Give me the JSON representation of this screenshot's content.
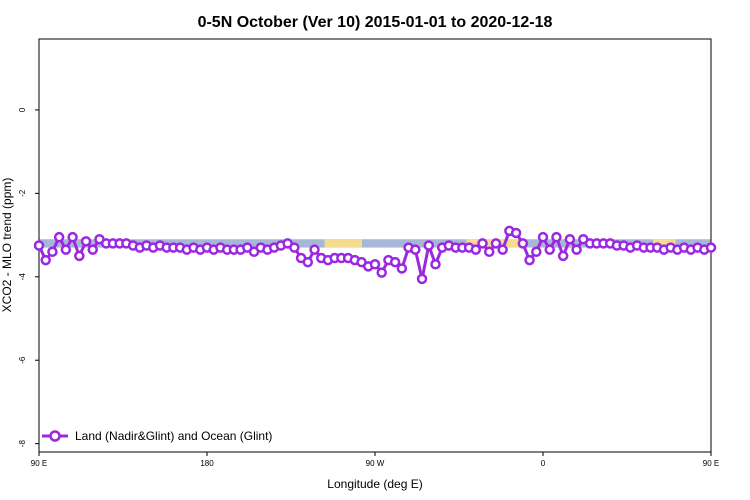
{
  "chart_data": {
    "type": "line",
    "title": "0-5N October (Ver 10)   2015-01-01 to 2020-12-18",
    "xlabel": "Longitude (deg E)",
    "ylabel": "XCO2 - MLO trend (ppm)",
    "xlim": [
      90,
      450
    ],
    "ylim": [
      -8.2,
      1.7
    ],
    "x_tick_labels": [
      {
        "value": 90,
        "label": "90 E"
      },
      {
        "value": 180,
        "label": "180"
      },
      {
        "value": 270,
        "label": "90 W"
      },
      {
        "value": 360,
        "label": "0"
      },
      {
        "value": 450,
        "label": "90 E"
      },
      {
        "value": 540,
        "label": "180"
      }
    ],
    "y_ticks": [
      0,
      -2,
      -4,
      -6,
      -8
    ],
    "y_tick_labels": [
      "0",
      "-2",
      "-4",
      "-6",
      "-8"
    ],
    "grid": false,
    "legend_position": "bottom-left",
    "surface_band": {
      "y_range": [
        -3.3,
        -3.1
      ],
      "ocean_color": "#a7b8d6",
      "land_color": "#f6dc8e",
      "land_segments": [
        [
          243,
          263
        ],
        [
          319,
          350
        ],
        [
          419,
          431
        ]
      ]
    },
    "series": [
      {
        "name": "Land (Nadir&Glint) and Ocean (Glint)",
        "color": "#9b27e0",
        "x": [
          90,
          93.6,
          97.2,
          100.8,
          104.4,
          108,
          111.6,
          115.2,
          118.8,
          122.4,
          126,
          129.6,
          133.2,
          136.8,
          140.4,
          144,
          147.6,
          151.2,
          154.8,
          158.4,
          162,
          165.6,
          169.2,
          172.8,
          176.4,
          180,
          183.6,
          187.2,
          190.8,
          194.4,
          198,
          201.6,
          205.2,
          208.8,
          212.4,
          216,
          219.6,
          223.2,
          226.8,
          230.4,
          234,
          237.6,
          241.2,
          244.8,
          248.4,
          252,
          255.6,
          259.2,
          262.8,
          266.4,
          270,
          273.6,
          277.2,
          280.8,
          284.4,
          288,
          291.6,
          295.2,
          298.8,
          302.4,
          306,
          309.6,
          313.2,
          316.8,
          320.4,
          324,
          327.6,
          331.2,
          334.8,
          338.4,
          342,
          345.6,
          349.2,
          352.8,
          356.4,
          360,
          363.6,
          367.2,
          370.8,
          374.4,
          378,
          381.6,
          385.2,
          388.8,
          392.4,
          396,
          399.6,
          403.2,
          406.8,
          410.4,
          414,
          417.6,
          421.2,
          424.8,
          428.4,
          432,
          435.6,
          439.2,
          442.8,
          446.4,
          450
        ],
        "y": [
          -3.25,
          -3.6,
          -3.4,
          -3.05,
          -3.35,
          -3.05,
          -3.5,
          -3.15,
          -3.35,
          -3.1,
          -3.2,
          -3.2,
          -3.2,
          -3.2,
          -3.25,
          -3.3,
          -3.25,
          -3.3,
          -3.25,
          -3.3,
          -3.3,
          -3.3,
          -3.35,
          -3.3,
          -3.35,
          -3.3,
          -3.35,
          -3.3,
          -3.35,
          -3.35,
          -3.35,
          -3.3,
          -3.4,
          -3.3,
          -3.35,
          -3.3,
          -3.25,
          -3.2,
          -3.3,
          -3.55,
          -3.65,
          -3.35,
          -3.55,
          -3.6,
          -3.55,
          -3.55,
          -3.55,
          -3.6,
          -3.65,
          -3.75,
          -3.7,
          -3.9,
          -3.6,
          -3.65,
          -3.8,
          -3.3,
          -3.35,
          -4.05,
          -3.25,
          -3.7,
          -3.3,
          -3.25,
          -3.3,
          -3.3,
          -3.3,
          -3.35,
          -3.2,
          -3.4,
          -3.2,
          -3.35,
          -2.9,
          -2.95,
          -3.2,
          -3.6,
          -3.4,
          -3.05,
          -3.35,
          -3.05,
          -3.5,
          -3.1,
          -3.35,
          -3.1,
          -3.2,
          -3.2,
          -3.2,
          -3.2,
          -3.25,
          -3.25,
          -3.3,
          -3.25,
          -3.3,
          -3.3,
          -3.3,
          -3.35,
          -3.3,
          -3.35,
          -3.3,
          -3.35,
          -3.3,
          -3.35,
          -3.3
        ]
      }
    ]
  }
}
